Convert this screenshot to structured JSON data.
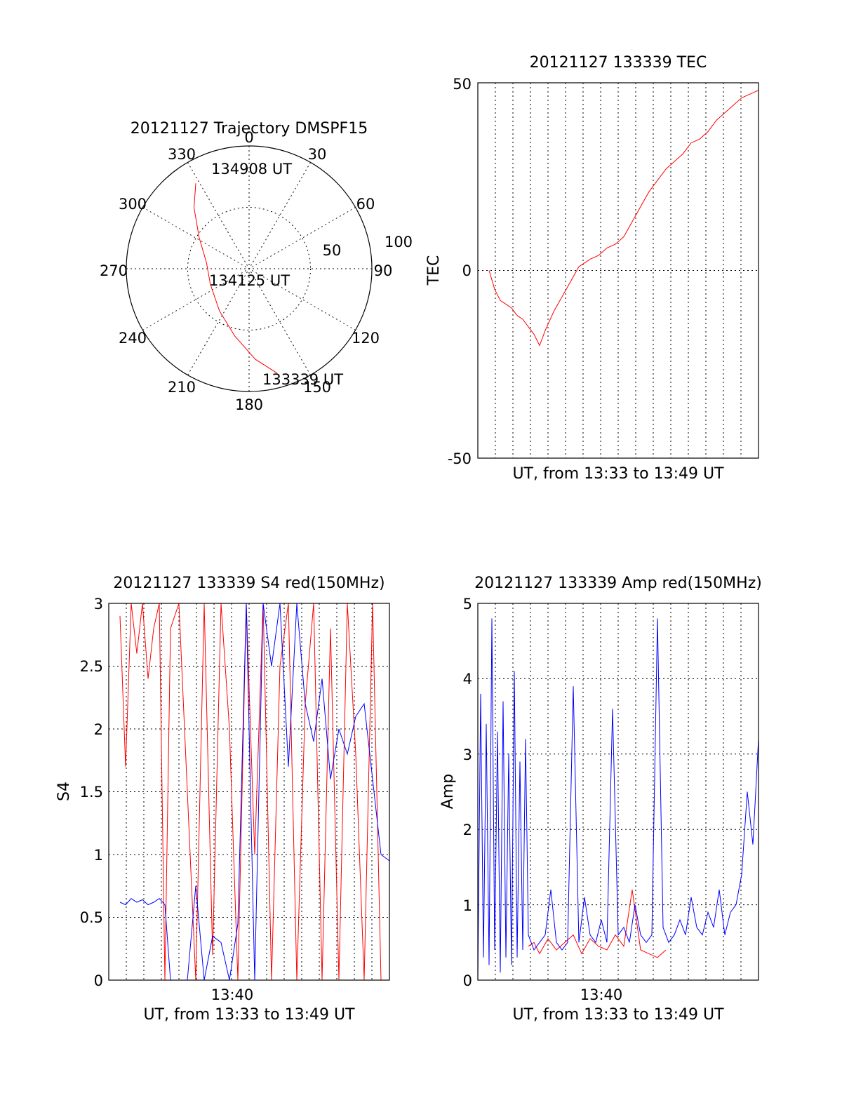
{
  "figure": {
    "panels": {
      "trajectory": {
        "title": "20121127 Trajectory DMSPF15",
        "azimuth_labels": [
          "0",
          "30",
          "60",
          "90",
          "120",
          "150",
          "180",
          "210",
          "240",
          "270",
          "300",
          "330"
        ],
        "radius_labels": [
          "50",
          "100"
        ],
        "annotations": [
          "134908 UT",
          "134125 UT",
          "133339 UT"
        ]
      },
      "tec": {
        "title": "20121127 133339 TEC",
        "xlabel": "UT, from 13:33 to 13:49 UT",
        "ylabel": "TEC",
        "yticks": [
          "50",
          "0",
          "-50"
        ]
      },
      "s4": {
        "title": "20121127 133339 S4 red(150MHz)",
        "xlabel": "UT, from 13:33 to 13:49 UT",
        "ylabel": "S4",
        "xtick": "13:40",
        "yticks": [
          "0",
          "0.5",
          "1",
          "1.5",
          "2",
          "2.5",
          "3"
        ]
      },
      "amp": {
        "title": "20121127 133339 Amp red(150MHz)",
        "xlabel": "UT, from 13:33 to 13:49 UT",
        "ylabel": "Amp",
        "xtick": "13:40",
        "yticks": [
          "0",
          "1",
          "2",
          "3",
          "4",
          "5"
        ]
      }
    }
  },
  "colors": {
    "red": "#ff0000",
    "blue": "#0000ff"
  },
  "chart_data": [
    {
      "type": "scatter",
      "chart": "polar trajectory",
      "title": "20121127 Trajectory DMSPF15",
      "theta_unit": "degrees (0 = top, clockwise)",
      "radius_range": [
        0,
        100
      ],
      "radius_ticks": [
        50,
        100
      ],
      "series": [
        {
          "color": "#ff0000",
          "points": [
            {
              "az": 165,
              "r": 88
            },
            {
              "az": 176,
              "r": 74
            },
            {
              "az": 192,
              "r": 56
            },
            {
              "az": 215,
              "r": 42
            },
            {
              "az": 248,
              "r": 34
            },
            {
              "az": 278,
              "r": 35
            },
            {
              "az": 302,
              "r": 48
            },
            {
              "az": 318,
              "r": 67
            },
            {
              "az": 328,
              "r": 82
            }
          ]
        }
      ],
      "annotations": [
        {
          "text": "134908 UT",
          "az": 333,
          "r": 86
        },
        {
          "text": "134125 UT",
          "az": 150,
          "r": 10
        },
        {
          "text": "133339 UT",
          "az": 162,
          "r": 92
        }
      ]
    },
    {
      "type": "line",
      "title": "20121127 133339 TEC",
      "xlabel": "UT, from 13:33 to 13:49 UT",
      "ylabel": "TEC",
      "xlim": [
        0,
        100
      ],
      "ylim": [
        -50,
        50
      ],
      "yticks": [
        -50,
        0,
        50
      ],
      "grid": true,
      "series": [
        {
          "color": "#ff0000",
          "x": [
            4,
            6,
            8,
            10,
            12,
            14,
            16,
            18,
            20,
            22,
            24,
            27,
            30,
            33,
            36,
            38,
            40,
            43,
            46,
            49,
            52,
            55,
            58,
            61,
            64,
            67,
            70,
            73,
            76,
            79,
            82,
            85,
            88,
            91,
            94,
            97,
            100
          ],
          "y": [
            0,
            -5,
            -8,
            -9,
            -10,
            -12,
            -13,
            -15,
            -17,
            -20,
            -16,
            -11,
            -7,
            -3,
            1,
            2,
            3,
            4,
            6,
            7,
            9,
            13,
            17,
            21,
            24,
            27,
            29,
            31,
            34,
            35,
            37,
            40,
            42,
            44,
            46,
            47,
            48
          ]
        }
      ]
    },
    {
      "type": "line",
      "title": "20121127 133339 S4 red(150MHz)",
      "xlabel": "UT, from 13:33 to 13:49 UT",
      "ylabel": "S4",
      "xlim": [
        0,
        100
      ],
      "ylim": [
        0,
        3
      ],
      "xticks": [
        {
          "x": 44,
          "label": "13:40"
        }
      ],
      "yticks": [
        0,
        0.5,
        1,
        1.5,
        2,
        2.5,
        3
      ],
      "grid": true,
      "series": [
        {
          "color": "#ff0000",
          "x": [
            4,
            6,
            8,
            10,
            12,
            14,
            16,
            18,
            20,
            22,
            25,
            28,
            31,
            34,
            37,
            40,
            43,
            46,
            49,
            52,
            55,
            58,
            61,
            64,
            67,
            70,
            73,
            76,
            79,
            82,
            85,
            88,
            91,
            94,
            97
          ],
          "y": [
            2.9,
            1.7,
            3.0,
            2.6,
            3.0,
            2.4,
            2.8,
            3.0,
            0.0,
            2.8,
            3.0,
            1.5,
            0.0,
            3.0,
            0.2,
            3.0,
            2.0,
            0.0,
            3.0,
            1.0,
            3.0,
            0.0,
            2.5,
            3.0,
            0.0,
            2.2,
            3.0,
            0.0,
            2.8,
            0.0,
            3.0,
            1.8,
            0.0,
            3.0,
            0.0
          ]
        },
        {
          "color": "#0000ff",
          "x": [
            4,
            6,
            8,
            10,
            12,
            14,
            16,
            18,
            20,
            22,
            25,
            28,
            31,
            34,
            37,
            40,
            43,
            46,
            49,
            52,
            55,
            58,
            61,
            64,
            67,
            70,
            73,
            76,
            79,
            82,
            85,
            88,
            91,
            94,
            97,
            100
          ],
          "y": [
            0.62,
            0.6,
            0.65,
            0.62,
            0.64,
            0.6,
            0.62,
            0.65,
            0.6,
            0.0,
            0.0,
            0.0,
            0.75,
            0.0,
            0.35,
            0.3,
            0.0,
            0.45,
            3.0,
            0.0,
            3.0,
            2.5,
            3.0,
            1.7,
            3.0,
            2.2,
            1.9,
            2.4,
            1.6,
            2.0,
            1.8,
            2.1,
            2.2,
            1.6,
            1.0,
            0.95
          ]
        }
      ]
    },
    {
      "type": "line",
      "title": "20121127 133339 Amp red(150MHz)",
      "xlabel": "UT, from 13:33 to 13:49 UT",
      "ylabel": "Amp",
      "xlim": [
        0,
        100
      ],
      "ylim": [
        0,
        5
      ],
      "xticks": [
        {
          "x": 44,
          "label": "13:40"
        }
      ],
      "yticks": [
        0,
        1,
        2,
        3,
        4,
        5
      ],
      "grid": true,
      "series": [
        {
          "color": "#ff0000",
          "x": [
            18,
            20,
            22,
            25,
            28,
            31,
            34,
            37,
            40,
            43,
            46,
            49,
            52,
            55,
            58,
            61,
            64,
            67
          ],
          "y": [
            0.45,
            0.5,
            0.35,
            0.55,
            0.4,
            0.5,
            0.6,
            0.35,
            0.55,
            0.45,
            0.4,
            0.6,
            0.45,
            1.2,
            0.4,
            0.35,
            0.3,
            0.4
          ]
        },
        {
          "color": "#0000ff",
          "x": [
            0,
            1,
            2,
            3,
            4,
            5,
            6,
            7,
            8,
            9,
            10,
            11,
            12,
            13,
            14,
            15,
            16,
            17,
            18,
            19,
            20,
            22,
            24,
            26,
            28,
            30,
            32,
            34,
            36,
            38,
            40,
            42,
            44,
            46,
            48,
            50,
            52,
            54,
            56,
            58,
            60,
            62,
            64,
            66,
            68,
            70,
            72,
            74,
            76,
            78,
            80,
            82,
            84,
            86,
            88,
            90,
            92,
            94,
            96,
            98,
            100
          ],
          "y": [
            0,
            3.8,
            0.3,
            3.4,
            0.2,
            4.8,
            0.4,
            3.3,
            0.1,
            3.7,
            0.3,
            3.0,
            0.2,
            4.1,
            0.3,
            2.9,
            0.4,
            3.2,
            0.6,
            0.5,
            0.4,
            0.5,
            0.6,
            1.2,
            0.5,
            0.4,
            0.5,
            3.9,
            0.5,
            1.1,
            0.6,
            0.5,
            0.8,
            0.5,
            3.6,
            0.6,
            0.7,
            0.5,
            1.0,
            0.6,
            0.5,
            0.6,
            4.8,
            0.7,
            0.5,
            0.6,
            0.8,
            0.6,
            1.1,
            0.7,
            0.6,
            0.9,
            0.7,
            1.2,
            0.6,
            0.9,
            1.0,
            1.4,
            2.5,
            1.8,
            3.2
          ]
        }
      ]
    }
  ]
}
